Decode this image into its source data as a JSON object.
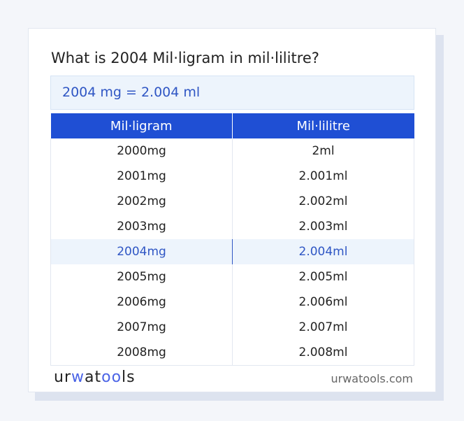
{
  "title": "What is 2004 Mil·ligram in mil·lilitre?",
  "result": "2004 mg = 2.004 ml",
  "table": {
    "headers": [
      "Mil·ligram",
      "Mil·lilitre"
    ],
    "rows": [
      [
        "2000mg",
        "2ml"
      ],
      [
        "2001mg",
        "2.001ml"
      ],
      [
        "2002mg",
        "2.002ml"
      ],
      [
        "2003mg",
        "2.003ml"
      ],
      [
        "2004mg",
        "2.004ml"
      ],
      [
        "2005mg",
        "2.005ml"
      ],
      [
        "2006mg",
        "2.006ml"
      ],
      [
        "2007mg",
        "2.007ml"
      ],
      [
        "2008mg",
        "2.008ml"
      ]
    ],
    "highlighted_row": 4
  },
  "footer": {
    "logo": {
      "part1": "ur",
      "part2": "w",
      "part3": "at",
      "part4": "oo",
      "part5": "ls"
    },
    "site": "urwatools.com"
  },
  "colors": {
    "accent": "#1f4fd4",
    "highlight_text": "#2f56c4",
    "highlight_bg": "#edf4fc"
  }
}
